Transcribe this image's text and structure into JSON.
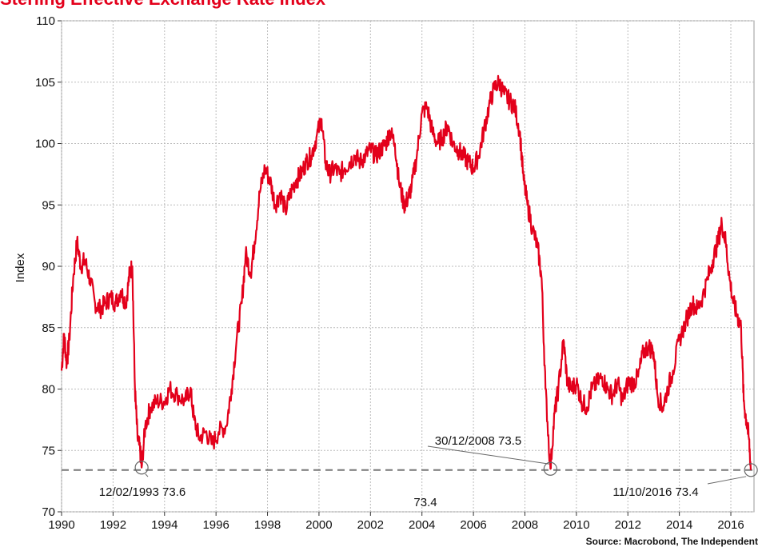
{
  "chart_data": {
    "type": "line",
    "title": "Sterling Effective Exchange Rate Index",
    "source": "Source: Macrobond, The Independent",
    "ylabel": "Index",
    "xlabel": "",
    "xlim": [
      1990,
      2016.9
    ],
    "ylim": [
      70,
      110
    ],
    "yticks": [
      "70",
      "75",
      "80",
      "85",
      "90",
      "95",
      "100",
      "105",
      "110"
    ],
    "xticks": [
      "1990",
      "1992",
      "1994",
      "1996",
      "1998",
      "2000",
      "2002",
      "2004",
      "2006",
      "2008",
      "2010",
      "2012",
      "2014",
      "2016"
    ],
    "grid": true,
    "colors": {
      "line": "#e3001b",
      "reference": "#777777",
      "grid": "#bbbbbb"
    },
    "reference_line": {
      "value": 73.4,
      "label": "73.4"
    },
    "annotations": [
      {
        "label": "12/02/1993 73.6",
        "x": 1993.11,
        "y": 73.6
      },
      {
        "label": "30/12/2008 73.5",
        "x": 2008.99,
        "y": 73.5
      },
      {
        "label": "11/10/2016 73.4",
        "x": 2016.78,
        "y": 73.4
      }
    ],
    "series": [
      {
        "values": [
          [
            1990.0,
            81.5
          ],
          [
            1990.1,
            84.5
          ],
          [
            1990.2,
            82.0
          ],
          [
            1990.3,
            84.0
          ],
          [
            1990.45,
            89.0
          ],
          [
            1990.6,
            92.0
          ],
          [
            1990.75,
            90.0
          ],
          [
            1990.9,
            90.5
          ],
          [
            1991.1,
            89.0
          ],
          [
            1991.3,
            87.0
          ],
          [
            1991.5,
            86.5
          ],
          [
            1991.7,
            87.0
          ],
          [
            1991.9,
            87.5
          ],
          [
            1992.1,
            87.0
          ],
          [
            1992.3,
            88.0
          ],
          [
            1992.5,
            87.0
          ],
          [
            1992.65,
            89.5
          ],
          [
            1992.75,
            90.0
          ],
          [
            1992.85,
            80.0
          ],
          [
            1992.95,
            76.0
          ],
          [
            1993.05,
            75.0
          ],
          [
            1993.11,
            73.6
          ],
          [
            1993.25,
            77.0
          ],
          [
            1993.45,
            78.5
          ],
          [
            1993.7,
            79.0
          ],
          [
            1994.0,
            79.0
          ],
          [
            1994.2,
            80.0
          ],
          [
            1994.5,
            79.5
          ],
          [
            1994.8,
            79.0
          ],
          [
            1995.0,
            80.0
          ],
          [
            1995.15,
            77.5
          ],
          [
            1995.35,
            76.0
          ],
          [
            1995.6,
            76.5
          ],
          [
            1995.85,
            75.5
          ],
          [
            1996.1,
            76.5
          ],
          [
            1996.4,
            77.0
          ],
          [
            1996.6,
            80.0
          ],
          [
            1996.8,
            84.0
          ],
          [
            1997.0,
            87.0
          ],
          [
            1997.15,
            91.0
          ],
          [
            1997.35,
            89.5
          ],
          [
            1997.5,
            92.0
          ],
          [
            1997.7,
            96.0
          ],
          [
            1997.9,
            98.0
          ],
          [
            1998.1,
            97.0
          ],
          [
            1998.3,
            95.0
          ],
          [
            1998.5,
            96.0
          ],
          [
            1998.7,
            94.5
          ],
          [
            1998.9,
            96.0
          ],
          [
            1999.1,
            97.0
          ],
          [
            1999.3,
            97.5
          ],
          [
            1999.5,
            98.5
          ],
          [
            1999.7,
            99.0
          ],
          [
            1999.9,
            100.5
          ],
          [
            2000.1,
            102.0
          ],
          [
            2000.25,
            98.5
          ],
          [
            2000.4,
            97.5
          ],
          [
            2000.6,
            98.0
          ],
          [
            2000.8,
            97.5
          ],
          [
            2001.0,
            98.0
          ],
          [
            2001.2,
            98.5
          ],
          [
            2001.4,
            99.0
          ],
          [
            2001.6,
            98.5
          ],
          [
            2001.8,
            99.0
          ],
          [
            2002.0,
            99.5
          ],
          [
            2002.2,
            99.0
          ],
          [
            2002.4,
            99.5
          ],
          [
            2002.6,
            100.0
          ],
          [
            2002.75,
            101.0
          ],
          [
            2002.95,
            100.0
          ],
          [
            2003.1,
            97.0
          ],
          [
            2003.3,
            95.0
          ],
          [
            2003.45,
            95.5
          ],
          [
            2003.6,
            96.5
          ],
          [
            2003.8,
            99.0
          ],
          [
            2004.0,
            102.5
          ],
          [
            2004.2,
            103.0
          ],
          [
            2004.4,
            101.0
          ],
          [
            2004.6,
            100.0
          ],
          [
            2004.8,
            100.5
          ],
          [
            2005.0,
            101.5
          ],
          [
            2005.2,
            100.0
          ],
          [
            2005.4,
            99.5
          ],
          [
            2005.6,
            99.0
          ],
          [
            2005.8,
            98.5
          ],
          [
            2006.0,
            98.0
          ],
          [
            2006.2,
            99.0
          ],
          [
            2006.4,
            101.0
          ],
          [
            2006.6,
            103.0
          ],
          [
            2006.8,
            104.5
          ],
          [
            2007.0,
            105.0
          ],
          [
            2007.2,
            104.0
          ],
          [
            2007.4,
            103.5
          ],
          [
            2007.6,
            103.0
          ],
          [
            2007.8,
            101.0
          ],
          [
            2007.95,
            97.0
          ],
          [
            2008.1,
            95.0
          ],
          [
            2008.3,
            93.0
          ],
          [
            2008.5,
            91.5
          ],
          [
            2008.65,
            89.0
          ],
          [
            2008.8,
            80.0
          ],
          [
            2008.99,
            73.5
          ],
          [
            2009.15,
            78.0
          ],
          [
            2009.3,
            80.0
          ],
          [
            2009.5,
            84.0
          ],
          [
            2009.65,
            80.5
          ],
          [
            2009.8,
            80.0
          ],
          [
            2010.0,
            80.5
          ],
          [
            2010.2,
            79.0
          ],
          [
            2010.4,
            78.5
          ],
          [
            2010.6,
            80.0
          ],
          [
            2010.8,
            80.5
          ],
          [
            2011.0,
            81.0
          ],
          [
            2011.2,
            80.0
          ],
          [
            2011.4,
            79.5
          ],
          [
            2011.6,
            80.5
          ],
          [
            2011.8,
            79.0
          ],
          [
            2012.0,
            80.5
          ],
          [
            2012.2,
            80.5
          ],
          [
            2012.4,
            81.0
          ],
          [
            2012.6,
            83.0
          ],
          [
            2012.8,
            83.5
          ],
          [
            2013.0,
            83.0
          ],
          [
            2013.15,
            79.5
          ],
          [
            2013.35,
            78.5
          ],
          [
            2013.55,
            80.0
          ],
          [
            2013.75,
            81.5
          ],
          [
            2014.0,
            84.0
          ],
          [
            2014.25,
            85.5
          ],
          [
            2014.5,
            87.0
          ],
          [
            2014.7,
            86.5
          ],
          [
            2014.9,
            87.5
          ],
          [
            2015.1,
            89.0
          ],
          [
            2015.3,
            90.5
          ],
          [
            2015.5,
            92.0
          ],
          [
            2015.65,
            93.5
          ],
          [
            2015.8,
            92.0
          ],
          [
            2015.95,
            89.0
          ],
          [
            2016.1,
            87.0
          ],
          [
            2016.25,
            86.0
          ],
          [
            2016.4,
            85.0
          ],
          [
            2016.5,
            79.0
          ],
          [
            2016.6,
            77.5
          ],
          [
            2016.7,
            76.0
          ],
          [
            2016.78,
            73.4
          ]
        ]
      }
    ]
  }
}
